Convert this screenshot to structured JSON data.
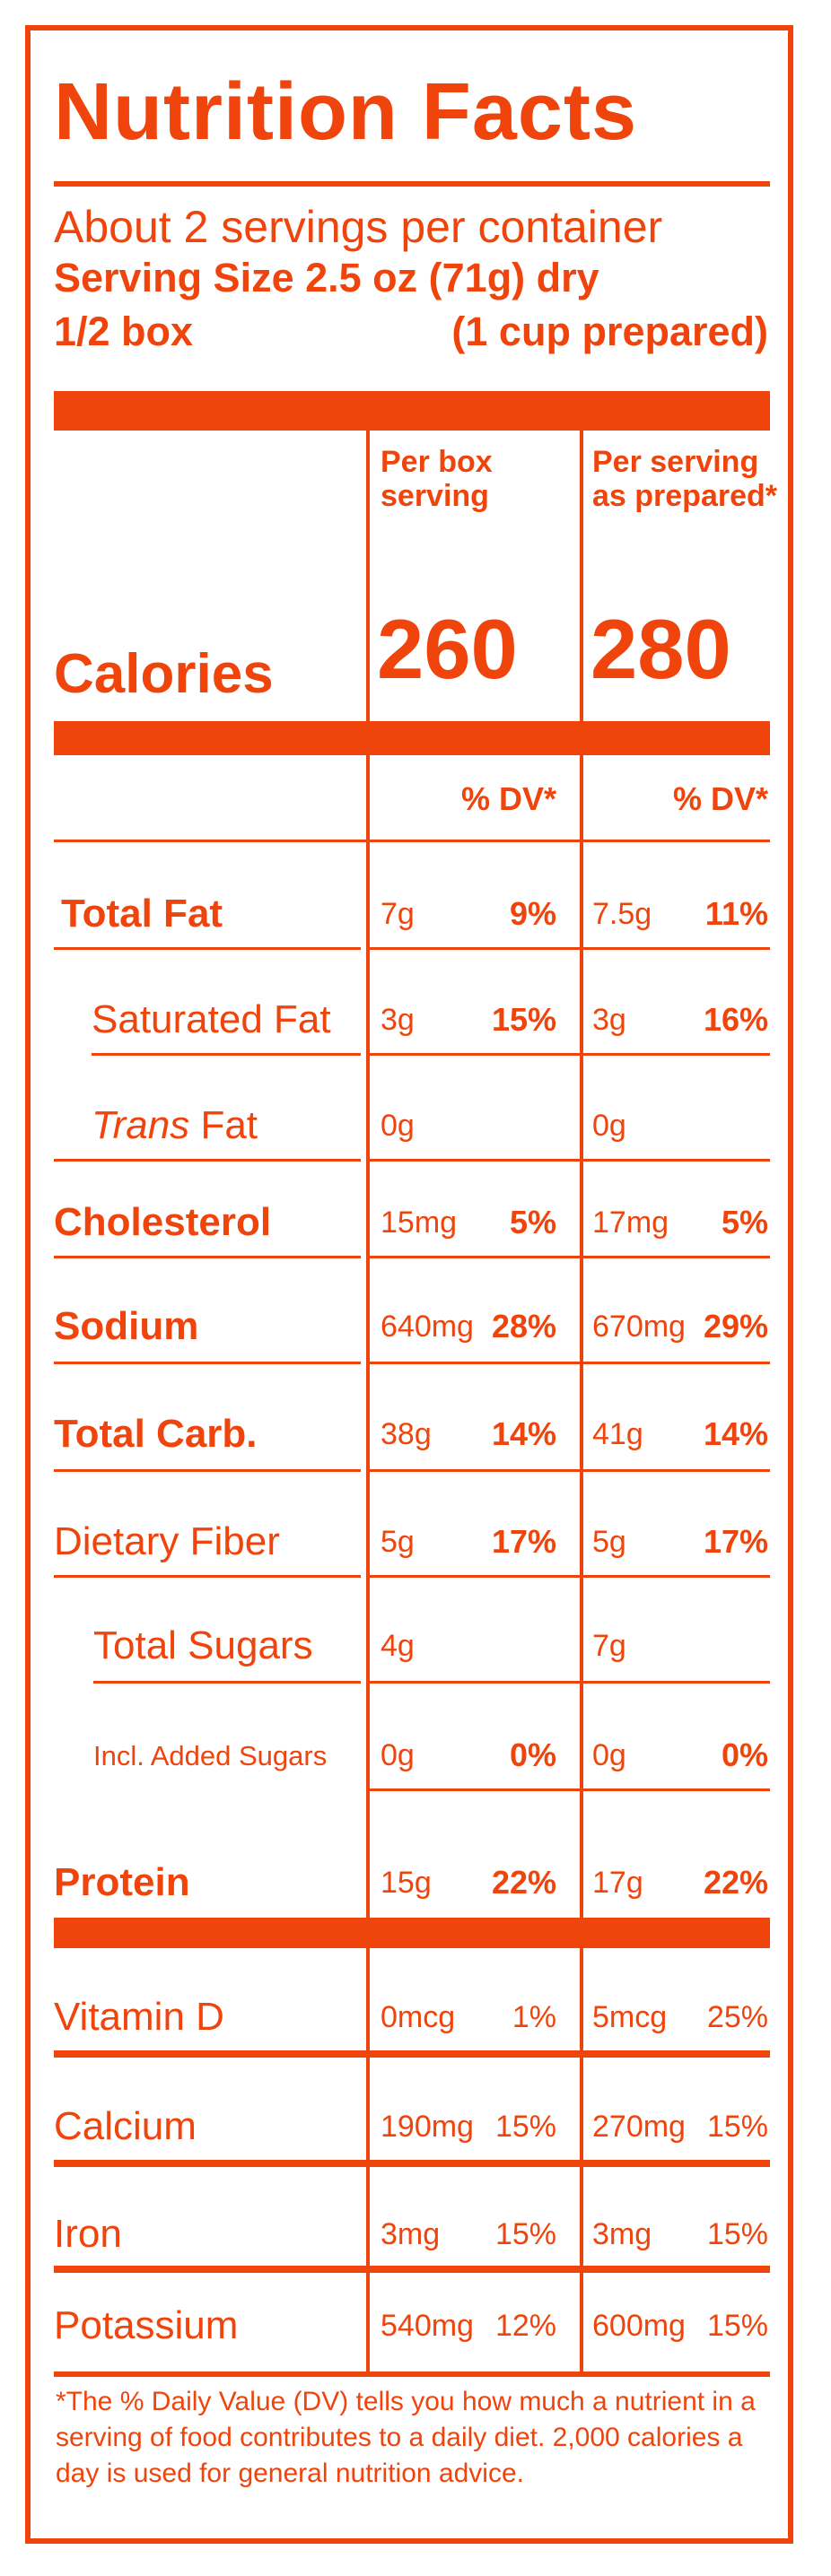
{
  "title": "Nutrition Facts",
  "servings_per_container": "About 2 servings per container",
  "serving_size_line": "Serving Size 2.5 oz (71g) dry",
  "serving_size_amount": "1/2 box",
  "serving_size_prepared": "(1 cup prepared)",
  "columns": {
    "col1_header": "Per box serving",
    "col2_header": "Per serving as prepared*"
  },
  "calories": {
    "label": "Calories",
    "col1": "260",
    "col2": "280"
  },
  "dv_header": {
    "col1": "% DV*",
    "col2": "% DV*"
  },
  "nutrients": [
    {
      "name": "Total Fat",
      "bold": true,
      "indent": false,
      "amount1": "7g",
      "dv1": "9%",
      "amount2": "7.5g",
      "dv2": "11%"
    },
    {
      "name": "Saturated Fat",
      "bold": false,
      "indent": true,
      "amount1": "3g",
      "dv1": "15%",
      "amount2": "3g",
      "dv2": "16%"
    },
    {
      "name": "Trans Fat",
      "bold": false,
      "indent": true,
      "italic_prefix": "Trans",
      "name_rest": " Fat",
      "amount1": "0g",
      "dv1": "",
      "amount2": "0g",
      "dv2": ""
    },
    {
      "name": "Cholesterol",
      "bold": true,
      "indent": false,
      "amount1": "15mg",
      "dv1": "5%",
      "amount2": "17mg",
      "dv2": "5%"
    },
    {
      "name": "Sodium",
      "bold": true,
      "indent": false,
      "amount1": "640mg",
      "dv1": "28%",
      "amount2": "670mg",
      "dv2": "29%"
    },
    {
      "name": "Total Carb.",
      "bold": true,
      "indent": false,
      "amount1": "38g",
      "dv1": "14%",
      "amount2": "41g",
      "dv2": "14%"
    },
    {
      "name": "Dietary Fiber",
      "bold": false,
      "indent": false,
      "amount1": "5g",
      "dv1": "17%",
      "amount2": "5g",
      "dv2": "17%"
    },
    {
      "name": "Total Sugars",
      "bold": false,
      "indent": true,
      "amount1": "4g",
      "dv1": "",
      "amount2": "7g",
      "dv2": ""
    },
    {
      "name": "Incl. Added Sugars",
      "bold": false,
      "indent": true,
      "small": true,
      "amount1": "0g",
      "dv1": "0%",
      "amount2": "0g",
      "dv2": "0%"
    },
    {
      "name": "Protein",
      "bold": true,
      "indent": false,
      "amount1": "15g",
      "dv1": "22%",
      "amount2": "17g",
      "dv2": "22%"
    }
  ],
  "vitamins": [
    {
      "name": "Vitamin D",
      "amount1": "0mcg",
      "dv1": "1%",
      "amount2": "5mcg",
      "dv2": "25%"
    },
    {
      "name": "Calcium",
      "amount1": "190mg",
      "dv1": "15%",
      "amount2": "270mg",
      "dv2": "15%"
    },
    {
      "name": "Iron",
      "amount1": "3mg",
      "dv1": "15%",
      "amount2": "3mg",
      "dv2": "15%"
    },
    {
      "name": "Potassium",
      "amount1": "540mg",
      "dv1": "12%",
      "amount2": "600mg",
      "dv2": "15%"
    }
  ],
  "footnote": "*The % Daily Value (DV) tells you how much a nutrient in a serving of food contributes to a daily diet. 2,000 calories a day is used for general nutrition advice.",
  "colors": {
    "accent": "#f0440d",
    "background": "#ffffff"
  }
}
